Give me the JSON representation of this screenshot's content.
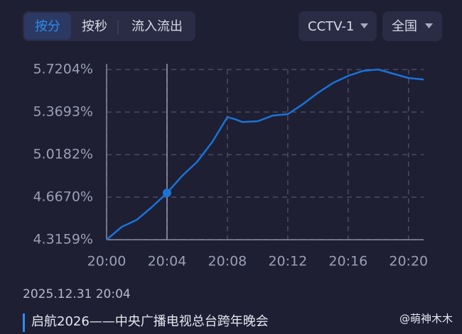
{
  "tabs": [
    "按分",
    "按秒",
    "流入流出"
  ],
  "dropdowns": [
    "CCTV-1",
    "全国"
  ],
  "chart_data": {
    "type": "line",
    "color": "#1a73d9",
    "x": [
      0,
      1,
      2,
      3,
      4,
      5,
      6,
      7,
      8,
      8.5,
      9,
      10,
      11,
      12,
      13,
      14,
      15,
      16,
      17,
      18,
      19,
      20,
      21
    ],
    "values": [
      4.3159,
      4.421,
      4.48,
      4.585,
      4.702,
      4.842,
      4.959,
      5.123,
      5.328,
      5.31,
      5.287,
      5.293,
      5.34,
      5.352,
      5.434,
      5.528,
      5.61,
      5.668,
      5.709,
      5.7204,
      5.685,
      5.65,
      5.638
    ],
    "xlim": [
      0,
      21
    ],
    "xticks": [
      {
        "value": 0,
        "label": "20:00"
      },
      {
        "value": 4,
        "label": "20:04"
      },
      {
        "value": 8,
        "label": "20:08"
      },
      {
        "value": 12,
        "label": "20:12"
      },
      {
        "value": 16,
        "label": "20:16"
      },
      {
        "value": 20,
        "label": "20:20"
      }
    ],
    "ylim": [
      4.3159,
      5.7204
    ],
    "yticks": [
      {
        "value": 4.3159,
        "label": "4.3159%"
      },
      {
        "value": 4.667,
        "label": "4.6670%"
      },
      {
        "value": 5.0182,
        "label": "5.0182%"
      },
      {
        "value": 5.3693,
        "label": "5.3693%"
      },
      {
        "value": 5.7204,
        "label": "5.7204%"
      }
    ],
    "grid": true,
    "crosshair_x": 4,
    "cursor_label": "2025.12.31 20:04"
  },
  "program": "启航2026——中央广播电视总台跨年晚会",
  "watermark": "@萌神木木"
}
